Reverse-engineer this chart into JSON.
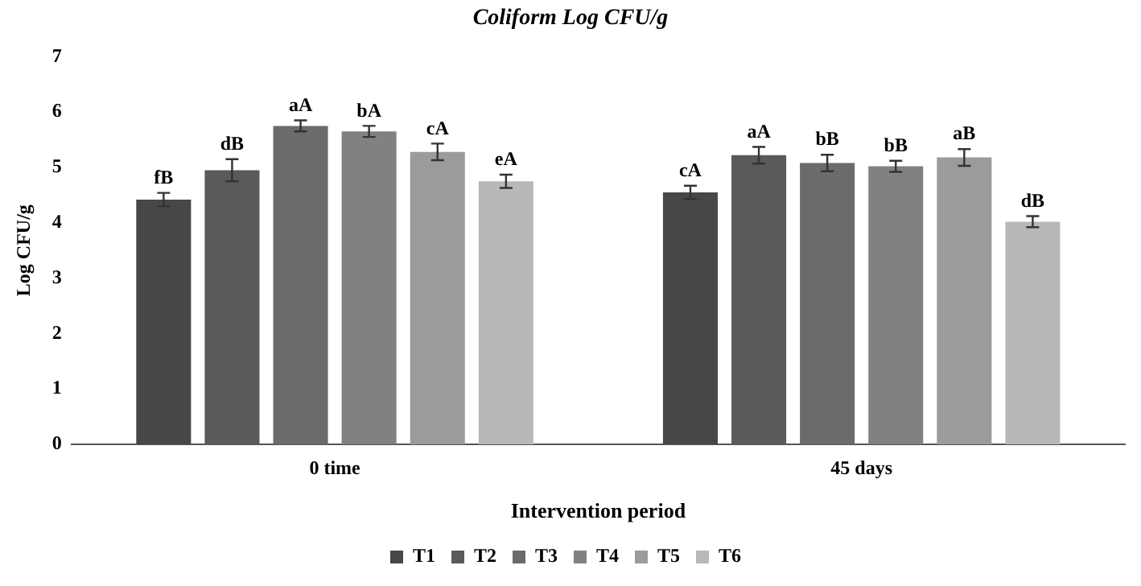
{
  "chart_data": {
    "type": "bar",
    "title": "Coliform  Log CFU/g",
    "xlabel": "Intervention period",
    "ylabel": "Log CFU/g",
    "categories": [
      "0 time",
      "45 days"
    ],
    "series": [
      {
        "name": "T1",
        "color": "#474747",
        "values": [
          4.42,
          4.55
        ],
        "errors": [
          0.12,
          0.12
        ],
        "value_labels": [
          "fB",
          "cA"
        ]
      },
      {
        "name": "T2",
        "color": "#5a5a5a",
        "values": [
          4.95,
          5.22
        ],
        "errors": [
          0.2,
          0.15
        ],
        "value_labels": [
          "dB",
          "aA"
        ]
      },
      {
        "name": "T3",
        "color": "#6b6b6b",
        "values": [
          5.75,
          5.08
        ],
        "errors": [
          0.1,
          0.15
        ],
        "value_labels": [
          "aA",
          "bB"
        ]
      },
      {
        "name": "T4",
        "color": "#818181",
        "values": [
          5.65,
          5.02
        ],
        "errors": [
          0.1,
          0.1
        ],
        "value_labels": [
          "bA",
          "bB"
        ]
      },
      {
        "name": "T5",
        "color": "#9b9b9b",
        "values": [
          5.28,
          5.18
        ],
        "errors": [
          0.15,
          0.15
        ],
        "value_labels": [
          "cA",
          "aB"
        ]
      },
      {
        "name": "T6",
        "color": "#b8b8b8",
        "values": [
          4.75,
          4.02
        ],
        "errors": [
          0.12,
          0.1
        ],
        "value_labels": [
          "eA",
          "dB"
        ]
      }
    ],
    "ylim": [
      0,
      7
    ],
    "yticks": [
      0,
      1,
      2,
      3,
      4,
      5,
      6,
      7
    ],
    "grid": false,
    "legend": "bottom"
  }
}
